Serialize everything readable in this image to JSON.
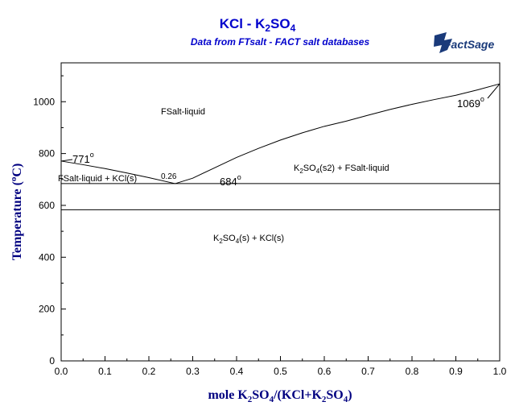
{
  "chart_data": {
    "type": "line",
    "title": "KCl - K2SO4",
    "subtitle": "Data from FTsalt - FACT salt databases",
    "brand": "FactSage",
    "xlabel": "mole K2SO4/(KCl+K2SO4)",
    "ylabel": "Temperature (°C)",
    "xlim": [
      0,
      1
    ],
    "ylim": [
      0,
      1150
    ],
    "x_ticks": [
      "0.0",
      "0.1",
      "0.2",
      "0.3",
      "0.4",
      "0.5",
      "0.6",
      "0.7",
      "0.8",
      "0.9",
      "1.0"
    ],
    "y_ticks": [
      "0",
      "200",
      "400",
      "600",
      "800",
      "1000"
    ],
    "series": [
      {
        "x": [
          0.0,
          0.05,
          0.1,
          0.15,
          0.2,
          0.26
        ],
        "y": [
          771,
          757,
          742,
          725,
          707,
          684
        ]
      },
      {
        "x": [
          0.26,
          0.3,
          0.35,
          0.4,
          0.45,
          0.5,
          0.55,
          0.6,
          0.65,
          0.7,
          0.75,
          0.8,
          0.85,
          0.9,
          0.95,
          1.0
        ],
        "y": [
          684,
          705,
          745,
          785,
          820,
          852,
          880,
          905,
          925,
          948,
          970,
          990,
          1008,
          1025,
          1046,
          1069
        ]
      },
      {
        "x": [
          0.0,
          1.0
        ],
        "y": [
          684,
          684
        ]
      },
      {
        "x": [
          0.0,
          1.0
        ],
        "y": [
          583,
          583
        ]
      }
    ],
    "annotations": [
      {
        "text": "FSalt-liquid",
        "x": 0.23,
        "y": 960
      },
      {
        "text": "FSalt-liquid + KCl(s)",
        "x": 0.09,
        "y": 710
      },
      {
        "text": "K2SO4(s2) + FSalt-liquid",
        "x": 0.65,
        "y": 735
      },
      {
        "text": "K2SO4(s) + KCl(s)",
        "x": 0.44,
        "y": 465
      },
      {
        "text": "771°",
        "x": 0.05,
        "y": 780
      },
      {
        "text": "0.26",
        "x": 0.255,
        "y": 710
      },
      {
        "text": "684°",
        "x": 0.4,
        "y": 668
      },
      {
        "text": "1069°",
        "x": 0.955,
        "y": 1000
      }
    ]
  }
}
